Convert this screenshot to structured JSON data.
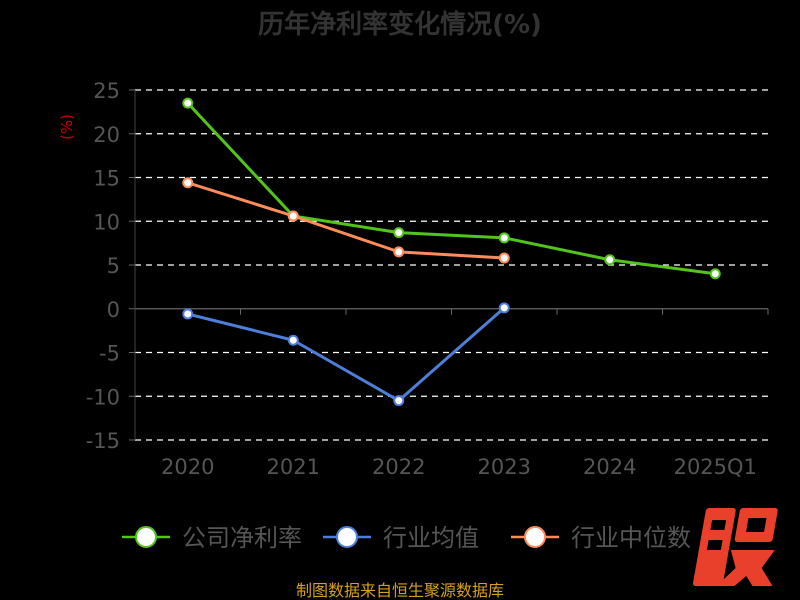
{
  "chart_data": {
    "type": "line",
    "title": "历年净利率变化情况(%)",
    "ylabel": "(%)",
    "xlabel": "",
    "categories": [
      "2020",
      "2021",
      "2022",
      "2023",
      "2024",
      "2025Q1"
    ],
    "ylim": [
      -15,
      25
    ],
    "yticks": [
      25,
      20,
      15,
      10,
      5,
      0,
      -5,
      -10,
      -15
    ],
    "grid": "horizontal-dashed",
    "legend_position": "bottom",
    "series": [
      {
        "name": "公司净利率",
        "color": "#52c41a",
        "values": [
          23.5,
          10.6,
          8.7,
          8.1,
          5.6,
          4.0
        ]
      },
      {
        "name": "行业均值",
        "color": "#4e7fd8",
        "values": [
          -0.6,
          -3.6,
          -10.5,
          0.1,
          null,
          null
        ]
      },
      {
        "name": "行业中位数",
        "color": "#ff8c5a",
        "values": [
          14.4,
          10.6,
          6.5,
          5.8,
          null,
          null
        ]
      }
    ]
  },
  "colors": {
    "background": "#000000",
    "title": "#333333",
    "axis_text": "#555555",
    "ylabel": "#cc0000",
    "grid": "#ffffff",
    "footer": "#d4a020",
    "brand": "#e8402a"
  },
  "footer": {
    "source": "制图数据来自恒生聚源数据库"
  },
  "brand": {
    "logo_text": "股",
    "icon": "stock-logo-icon"
  }
}
